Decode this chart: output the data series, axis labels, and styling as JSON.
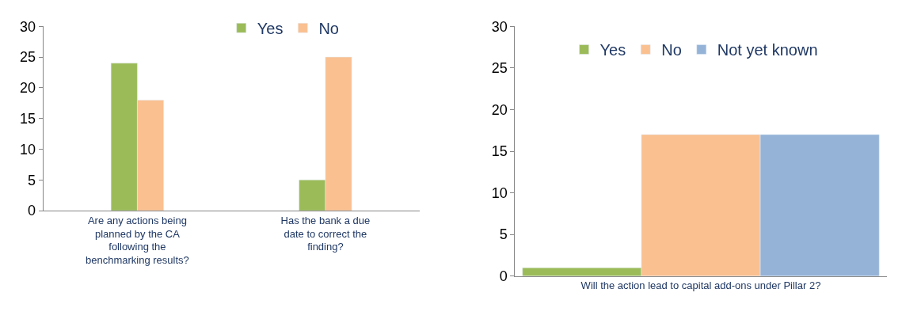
{
  "chart_data": [
    {
      "type": "bar",
      "categories": [
        "Are any actions being planned by the CA following the benchmarking results?",
        "Has the bank a due date to correct the finding?"
      ],
      "series": [
        {
          "name": "Yes",
          "color": "#9bbb59",
          "values": [
            24,
            5
          ]
        },
        {
          "name": "No",
          "color": "#fac090",
          "values": [
            18,
            25
          ]
        }
      ],
      "ylim": [
        0,
        30
      ],
      "yticks": [
        0,
        5,
        10,
        15,
        20,
        25,
        30
      ],
      "legend": "top"
    },
    {
      "type": "bar",
      "categories": [
        "Will the action lead to capital add-ons under Pillar 2?"
      ],
      "series": [
        {
          "name": "Yes",
          "color": "#9bbb59",
          "values": [
            1
          ]
        },
        {
          "name": "No",
          "color": "#fac090",
          "values": [
            17
          ]
        },
        {
          "name": "Not yet known",
          "color": "#95b3d7",
          "values": [
            17
          ]
        }
      ],
      "ylim": [
        0,
        30
      ],
      "yticks": [
        0,
        5,
        10,
        15,
        20,
        25,
        30
      ],
      "legend": "top"
    }
  ]
}
